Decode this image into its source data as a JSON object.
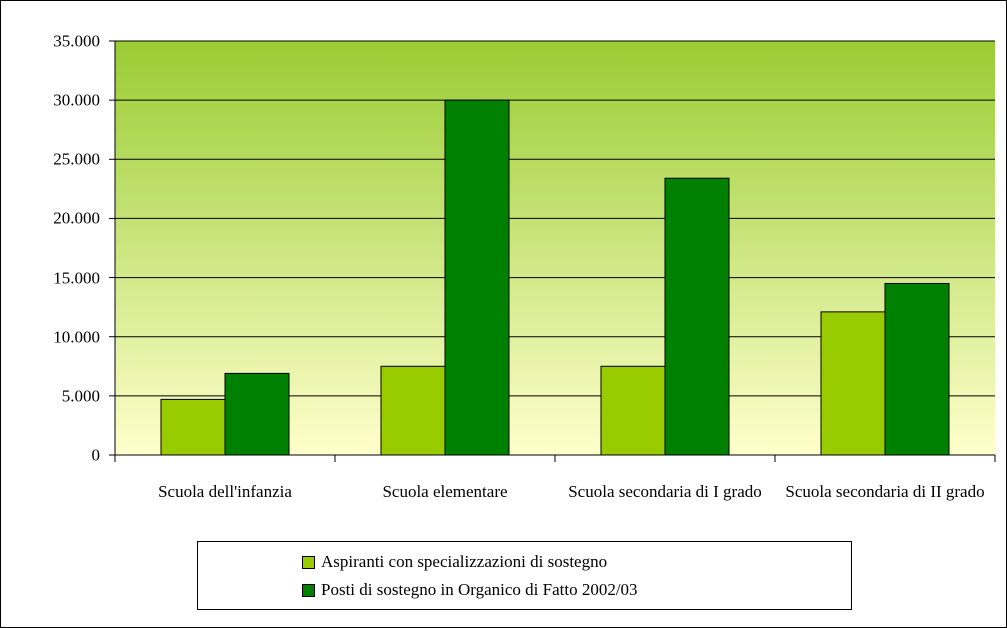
{
  "chart_data": {
    "type": "bar",
    "categories": [
      "Scuola dell'infanzia",
      "Scuola elementare",
      "Scuola secondaria di I grado",
      "Scuola secondaria di II grado"
    ],
    "series": [
      {
        "name": "Aspiranti con specializzazioni di sostegno",
        "color": "#99cc00",
        "values": [
          4700,
          7500,
          7500,
          12100
        ]
      },
      {
        "name": "Posti di sostegno in Organico di Fatto 2002/03",
        "color": "#008000",
        "values": [
          6900,
          30000,
          23400,
          14500
        ]
      }
    ],
    "ylim": [
      0,
      35000
    ],
    "yticks": [
      0,
      {
        "value": 5000,
        "label": "5.000"
      },
      {
        "value": 10000,
        "label": "10.000"
      },
      {
        "value": 15000,
        "label": "15.000"
      },
      {
        "value": 20000,
        "label": "20.000"
      },
      {
        "value": 25000,
        "label": "25.000"
      },
      {
        "value": 30000,
        "label": "30.000"
      },
      {
        "value": 35000,
        "label": "35.000"
      }
    ],
    "grid": true,
    "legend": "bottom"
  }
}
